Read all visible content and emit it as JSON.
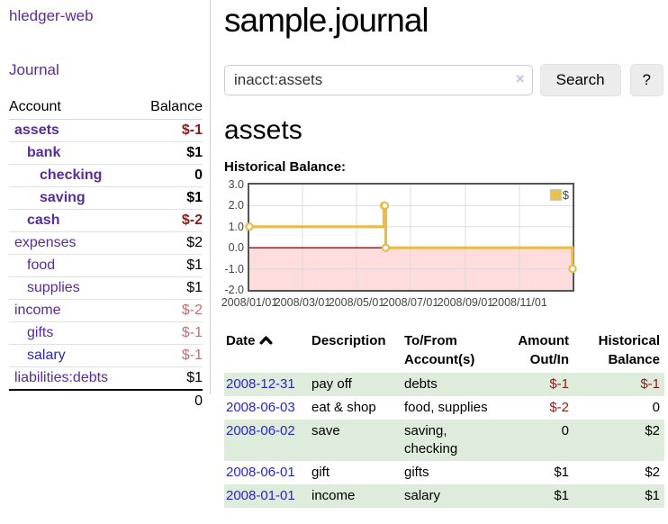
{
  "app": {
    "brand": "hledger-web",
    "nav_journal": "Journal"
  },
  "sidebar": {
    "columns": {
      "account": "Account",
      "balance": "Balance"
    },
    "accounts": [
      {
        "name": "assets",
        "balance": "$-1",
        "level": 1,
        "bold": true,
        "neg": "strong",
        "link": "purple"
      },
      {
        "name": "bank",
        "balance": "$1",
        "level": 2,
        "bold": true,
        "neg": "none",
        "link": "purple"
      },
      {
        "name": "checking",
        "balance": "0",
        "level": 3,
        "bold": true,
        "neg": "none",
        "link": "purple"
      },
      {
        "name": "saving",
        "balance": "$1",
        "level": 3,
        "bold": true,
        "neg": "none",
        "link": "purple"
      },
      {
        "name": "cash",
        "balance": "$-2",
        "level": 2,
        "bold": true,
        "neg": "strong",
        "link": "purple"
      },
      {
        "name": "expenses",
        "balance": "$2",
        "level": 1,
        "bold": false,
        "neg": "none",
        "link": "purple"
      },
      {
        "name": "food",
        "balance": "$1",
        "level": 2,
        "bold": false,
        "neg": "none",
        "link": "purple"
      },
      {
        "name": "supplies",
        "balance": "$1",
        "level": 2,
        "bold": false,
        "neg": "none",
        "link": "purple"
      },
      {
        "name": "income",
        "balance": "$-2",
        "level": 1,
        "bold": false,
        "neg": "soft",
        "link": "purple"
      },
      {
        "name": "gifts",
        "balance": "$-1",
        "level": 2,
        "bold": false,
        "neg": "soft",
        "link": "purple"
      },
      {
        "name": "salary",
        "balance": "$-1",
        "level": 2,
        "bold": false,
        "neg": "soft",
        "link": "blue"
      },
      {
        "name": "liabilities:debts",
        "balance": "$1",
        "level": 1,
        "bold": false,
        "neg": "none",
        "link": "purple"
      }
    ],
    "total": "0"
  },
  "header": {
    "title": "sample.journal"
  },
  "search": {
    "value": "inacct:assets",
    "clear_icon": "×",
    "button_label": "Search",
    "help_label": "?"
  },
  "account_page": {
    "heading": "assets",
    "chart_label": "Historical Balance:"
  },
  "chart_data": {
    "type": "line",
    "style": "step",
    "title": "Historical Balance",
    "xlim": [
      "2008-01-01",
      "2008-12-31"
    ],
    "ylim": [
      -2,
      3
    ],
    "yticks": [
      3.0,
      2.0,
      1.0,
      0.0,
      -1.0,
      -2.0
    ],
    "xticks": [
      "2008/01/01",
      "2008/03/01",
      "2008/05/01",
      "2008/07/01",
      "2008/09/01",
      "2008/11/01"
    ],
    "grid": true,
    "legend": {
      "position": "top-right",
      "label": "$"
    },
    "series": [
      {
        "name": "$",
        "color": "#e6bd4a",
        "points": [
          {
            "date": "2008-01-01",
            "value": 1
          },
          {
            "date": "2008-06-01",
            "value": 2
          },
          {
            "date": "2008-06-02",
            "value": 2
          },
          {
            "date": "2008-06-03",
            "value": 0
          },
          {
            "date": "2008-12-31",
            "value": -1
          }
        ]
      }
    ],
    "colors": {
      "negative_region": "#ffdddd",
      "zero_line": "#a00000",
      "gridline": "#dcdcdc",
      "plot_border": "#545454"
    }
  },
  "register": {
    "columns": [
      {
        "label": "Date",
        "sorted": "asc"
      },
      {
        "label": "Description"
      },
      {
        "label": "To/From Account(s)"
      },
      {
        "label": "Amount Out/In"
      },
      {
        "label": "Historical Balance"
      }
    ],
    "rows": [
      {
        "date": "2008-12-31",
        "description": "pay off",
        "accounts": "debts",
        "amount": "$-1",
        "balance": "$-1",
        "amount_neg": true,
        "balance_neg": true
      },
      {
        "date": "2008-06-03",
        "description": "eat & shop",
        "accounts": "food, supplies",
        "amount": "$-2",
        "balance": "0",
        "amount_neg": true,
        "balance_neg": false
      },
      {
        "date": "2008-06-02",
        "description": "save",
        "accounts": "saving, checking",
        "amount": "0",
        "balance": "$2",
        "amount_neg": false,
        "balance_neg": false
      },
      {
        "date": "2008-06-01",
        "description": "gift",
        "accounts": "gifts",
        "amount": "$1",
        "balance": "$2",
        "amount_neg": false,
        "balance_neg": false
      },
      {
        "date": "2008-01-01",
        "description": "income",
        "accounts": "salary",
        "amount": "$1",
        "balance": "$1",
        "amount_neg": false,
        "balance_neg": false
      }
    ]
  }
}
